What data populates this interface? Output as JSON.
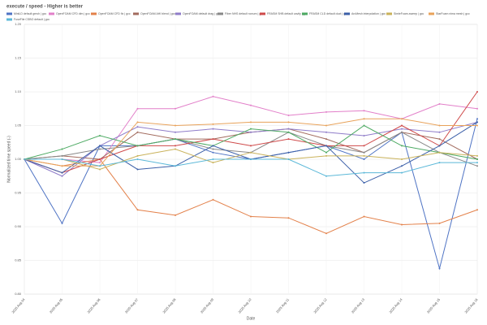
{
  "chart_data": {
    "type": "line",
    "title": "execute / speed - Higher is better",
    "x_label": "Date",
    "y_label": "Normalized time speed (-)",
    "categories": [
      "2025 Aug 04",
      "2025 Aug 05",
      "2025 Aug 06",
      "2025 Aug 07",
      "2025 Aug 08",
      "2025 Aug 09",
      "2025 Aug 10",
      "2025 Aug 11",
      "2025 Aug 12",
      "2025 Aug 13",
      "2025 Aug 14",
      "2025 Aug 15",
      "2025 Aug 16"
    ],
    "ylim": [
      0.8,
      1.2
    ],
    "yticks": [
      {
        "value": 0.8,
        "label": "0.80"
      },
      {
        "value": 0.85,
        "label": "0.85"
      },
      {
        "value": 0.9,
        "label": "0.90"
      },
      {
        "value": 0.95,
        "label": "0.95"
      },
      {
        "value": 1,
        "label": "1.00"
      },
      {
        "value": 1.05,
        "label": "1.05"
      },
      {
        "value": 1.1,
        "label": "1.10"
      },
      {
        "value": 1.15,
        "label": "1.15"
      },
      {
        "value": 1.2,
        "label": "1.20"
      }
    ],
    "grid": true,
    "series": [
      {
        "name": "MiniLD default gmsh | gcc",
        "color": "#4e73c4",
        "values": [
          1.0,
          0.905,
          1.02,
          1.02,
          1.03,
          1.01,
          1.0,
          1.01,
          1.02,
          1.0,
          1.04,
          0.838,
          1.06
        ]
      },
      {
        "name": "OpenFOAM CFD dim | gcc",
        "color": "#e27fc9",
        "values": [
          1.0,
          1.0,
          0.995,
          1.075,
          1.075,
          1.093,
          1.08,
          1.065,
          1.07,
          1.072,
          1.06,
          1.082,
          1.075
        ]
      },
      {
        "name": "OpenFOAM CFD fix | gcc",
        "color": "#e3814a",
        "values": [
          1.0,
          0.99,
          1.0,
          0.925,
          0.917,
          0.94,
          0.915,
          0.913,
          0.89,
          0.915,
          0.903,
          0.905,
          0.925
        ]
      },
      {
        "name": "OpenFOAM AHI blend | gcc",
        "color": "#a26b5e",
        "values": [
          1.0,
          1.005,
          1.0,
          1.04,
          1.03,
          1.03,
          1.04,
          1.045,
          1.03,
          1.01,
          1.04,
          1.03,
          1.0
        ]
      },
      {
        "name": "OpenFOAM default drag | gcc",
        "color": "#8f7cc9",
        "values": [
          1.0,
          0.975,
          1.02,
          1.048,
          1.04,
          1.045,
          1.04,
          1.045,
          1.04,
          1.035,
          1.045,
          1.04,
          1.055
        ]
      },
      {
        "name": "Fiber NHS default nonum | gcc",
        "color": "#888888",
        "values": [
          1.0,
          1.005,
          1.015,
          1.02,
          1.03,
          1.015,
          1.01,
          1.04,
          1.02,
          1.01,
          1.04,
          1.01,
          0.99
        ]
      },
      {
        "name": "FRASM SHB default cavity | gcc",
        "color": "#cf4a4a",
        "values": [
          1.0,
          0.98,
          1.0,
          1.02,
          1.02,
          1.03,
          1.02,
          1.03,
          1.02,
          1.02,
          1.05,
          1.02,
          1.1
        ]
      },
      {
        "name": "FRASM CLD default duct | gcc",
        "color": "#4daa63",
        "values": [
          1.0,
          1.015,
          1.035,
          1.02,
          1.03,
          1.02,
          1.045,
          1.04,
          1.01,
          1.05,
          1.02,
          1.01,
          1.0
        ]
      },
      {
        "name": "ArcMesh interpolation | gcc",
        "color": "#3b5fa8",
        "values": [
          1.0,
          0.98,
          1.02,
          0.985,
          0.99,
          1.02,
          1.0,
          1.01,
          1.02,
          0.965,
          0.99,
          1.02,
          1.055
        ]
      },
      {
        "name": "SimleFoam-sweep | gcc",
        "color": "#c9b25a",
        "values": [
          1.0,
          1.0,
          0.985,
          1.005,
          1.015,
          0.995,
          1.01,
          1.0,
          1.005,
          1.005,
          1.0,
          1.01,
          1.005
        ]
      },
      {
        "name": "StarFoam nima mesh | gcc",
        "color": "#e8a25a",
        "values": [
          1.0,
          0.99,
          0.99,
          1.055,
          1.05,
          1.052,
          1.055,
          1.055,
          1.05,
          1.06,
          1.06,
          1.05,
          1.05
        ]
      },
      {
        "name": "FuseFile CSBO default | gcc",
        "color": "#5bb8d8",
        "values": [
          1.0,
          1.0,
          0.99,
          1.0,
          0.99,
          1.0,
          1.0,
          1.0,
          0.975,
          0.98,
          0.98,
          0.995,
          0.995
        ]
      }
    ]
  }
}
